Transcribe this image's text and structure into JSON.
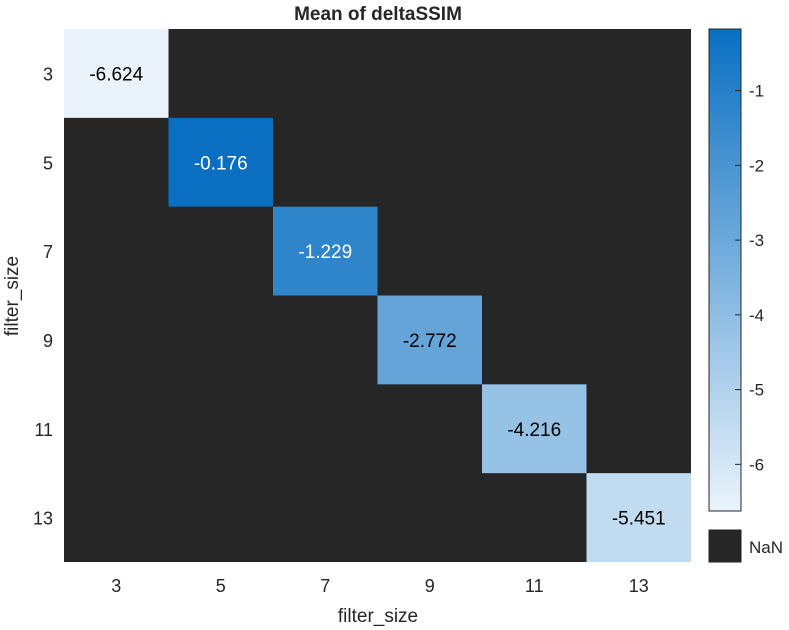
{
  "chart_data": {
    "type": "heatmap",
    "title": "Mean of deltaSSIM",
    "xlabel": "filter_size",
    "ylabel": "filter_size",
    "x_categories": [
      "3",
      "5",
      "7",
      "9",
      "11",
      "13"
    ],
    "y_categories": [
      "3",
      "5",
      "7",
      "9",
      "11",
      "13"
    ],
    "cells": [
      {
        "x": "3",
        "y": "3",
        "value": -6.624,
        "label": "-6.624"
      },
      {
        "x": "5",
        "y": "5",
        "value": -0.176,
        "label": "-0.176"
      },
      {
        "x": "7",
        "y": "7",
        "value": -1.229,
        "label": "-1.229"
      },
      {
        "x": "9",
        "y": "9",
        "value": -2.772,
        "label": "-2.772"
      },
      {
        "x": "11",
        "y": "11",
        "value": -4.216,
        "label": "-4.216"
      },
      {
        "x": "13",
        "y": "13",
        "value": -5.451,
        "label": "-5.451"
      }
    ],
    "missing_label": "NaN",
    "missing_color": "#262626",
    "colorbar": {
      "min": -6.624,
      "max": -0.176,
      "ticks": [
        -1,
        -2,
        -3,
        -4,
        -5,
        -6
      ],
      "tick_labels": [
        "-1",
        "-2",
        "-3",
        "-4",
        "-5",
        "-6"
      ],
      "color_low": "#eaf3fb",
      "color_high": "#0a6fc1",
      "position": "right"
    }
  }
}
